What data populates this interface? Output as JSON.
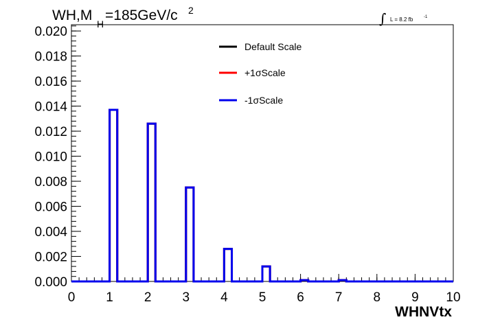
{
  "chart_data": {
    "type": "histogram",
    "title": {
      "main": "WH,M",
      "subscript": "H",
      "rest": "=185GeV/c",
      "superscript": "2"
    },
    "luminosity": {
      "integral_symbol": "∫",
      "text": "L = 8.2 fb",
      "superscript": "-1"
    },
    "xlabel": "WHNVtx",
    "ylabel": "",
    "xlim": [
      0,
      10
    ],
    "ylim": [
      0,
      0.0205
    ],
    "x_ticks": [
      "0",
      "1",
      "2",
      "3",
      "4",
      "5",
      "6",
      "7",
      "8",
      "9",
      "10"
    ],
    "y_ticks": [
      "0.000",
      "0.002",
      "0.004",
      "0.006",
      "0.008",
      "0.010",
      "0.012",
      "0.014",
      "0.016",
      "0.018",
      "0.020"
    ],
    "bins": {
      "edges": [
        0.0,
        0.2,
        0.4,
        0.6,
        0.8,
        1.0,
        1.2,
        1.4,
        1.6,
        1.8,
        2.0,
        2.2,
        2.4,
        2.6,
        2.8,
        3.0,
        3.2,
        3.4,
        3.6,
        3.8,
        4.0,
        4.2,
        4.4,
        4.6,
        4.8,
        5.0,
        5.2,
        5.4,
        5.6,
        5.8,
        6.0,
        6.2,
        6.4,
        6.6,
        6.8,
        7.0,
        7.2,
        7.4,
        7.6,
        7.8,
        8.0,
        8.2,
        8.4,
        8.6,
        8.8,
        9.0,
        9.2,
        9.4,
        9.6,
        9.8,
        10.0
      ]
    },
    "series": [
      {
        "name": "Default Scale",
        "color": "#000000",
        "values": [
          0,
          0,
          0,
          0,
          0,
          0.0137,
          0,
          0,
          0,
          0,
          0.0126,
          0,
          0,
          0,
          0,
          0.0075,
          0,
          0,
          0,
          0,
          0.0026,
          0,
          0,
          0,
          0,
          0.0012,
          0,
          0,
          0,
          0,
          0.0001,
          0,
          0,
          0,
          0,
          0.0001,
          0,
          0,
          0,
          0,
          0,
          0,
          0,
          0,
          0,
          0,
          0,
          0,
          0,
          0
        ]
      },
      {
        "name": "+1σScale",
        "color": "#ff0000",
        "values": [
          0,
          0,
          0,
          0,
          0,
          0.0137,
          0,
          0,
          0,
          0,
          0.0126,
          0,
          0,
          0,
          0,
          0.0075,
          0,
          0,
          0,
          0,
          0.0026,
          0,
          0,
          0,
          0,
          0.0012,
          0,
          0,
          0,
          0,
          0.0001,
          0,
          0,
          0,
          0,
          0.0001,
          0,
          0,
          0,
          0,
          0,
          0,
          0,
          0,
          0,
          0,
          0,
          0,
          0,
          0
        ]
      },
      {
        "name": "-1σScale",
        "color": "#0000ee",
        "values": [
          0,
          0,
          0,
          0,
          0,
          0.0137,
          0,
          0,
          0,
          0,
          0.0126,
          0,
          0,
          0,
          0,
          0.0075,
          0,
          0,
          0,
          0,
          0.0026,
          0,
          0,
          0,
          0,
          0.0012,
          0,
          0,
          0,
          0,
          0.0001,
          0,
          0,
          0,
          0,
          0.0001,
          0,
          0,
          0,
          0,
          0,
          0,
          0,
          0,
          0,
          0,
          0,
          0,
          0,
          0
        ]
      }
    ],
    "legend": {
      "placement": "top-center",
      "entries": [
        "Default Scale",
        "+1σScale",
        "-1σScale"
      ]
    },
    "grid": false
  }
}
